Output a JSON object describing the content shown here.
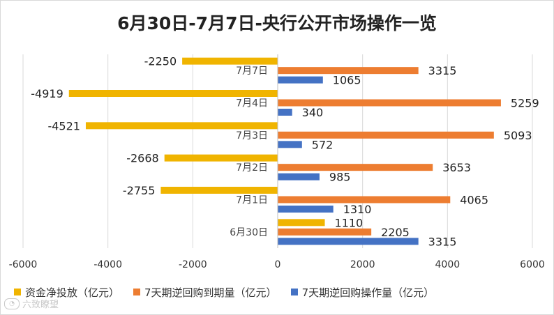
{
  "chart_data": {
    "type": "bar",
    "orientation": "horizontal",
    "title": "6月30日-7月7日-央行公开市场操作一览",
    "categories": [
      "6月30日",
      "7月1日",
      "7月2日",
      "7月3日",
      "7月4日",
      "7月7日"
    ],
    "series": [
      {
        "name": "资金净投放（亿元）",
        "color": "#f0b400",
        "values": [
          1110,
          -2755,
          -2668,
          -4521,
          -4919,
          -2250
        ]
      },
      {
        "name": "7天期逆回购到期量（亿元）",
        "color": "#ed7d31",
        "values": [
          2205,
          4065,
          3653,
          5093,
          5259,
          3315
        ]
      },
      {
        "name": "7天期逆回购操作量（亿元）",
        "color": "#4472c4",
        "values": [
          3315,
          1310,
          985,
          572,
          340,
          1065
        ]
      }
    ],
    "xlim": [
      -6000,
      6000
    ],
    "xticks": [
      -6000,
      -4000,
      -2000,
      0,
      2000,
      4000,
      6000
    ],
    "grid": true,
    "legend_position": "bottom"
  },
  "watermark": {
    "text": "六致瞭望",
    "icon": "logo-icon"
  }
}
